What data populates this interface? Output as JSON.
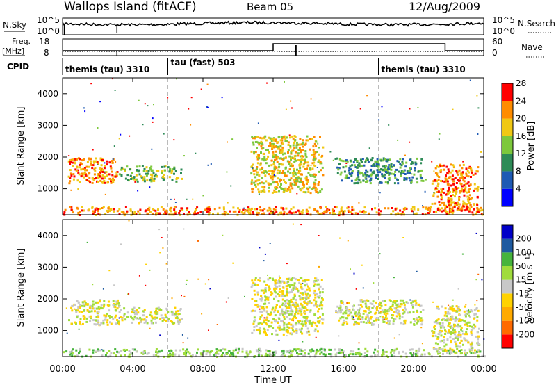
{
  "header": {
    "site": "Wallops Island (fitACF)",
    "beam": "Beam 05",
    "date": "12/Aug/2009"
  },
  "panels": {
    "nsky": {
      "left_label": "N.Sky",
      "left_ticks": [
        "10^5",
        "10^0"
      ],
      "right_ticks": [
        "10^5",
        "10^0"
      ],
      "right_label": "N.Search"
    },
    "freq": {
      "left_label_1": "Freq.",
      "left_label_2": "[MHz]",
      "left_ticks": [
        "18",
        "8"
      ],
      "right_ticks": [
        "60",
        "0"
      ],
      "right_label": "Nave"
    },
    "cpid": {
      "label": "CPID",
      "segments": [
        {
          "text": "themis (tau) 3310",
          "start_h": 0
        },
        {
          "text": "tau (fast) 503",
          "start_h": 6
        },
        {
          "text": "themis (tau) 3310",
          "start_h": 18
        }
      ]
    }
  },
  "chart_data": [
    {
      "type": "heatmap",
      "name": "power",
      "ylabel": "Slant Range [km]",
      "ytick_labels": [
        "1000",
        "2000",
        "3000",
        "4000"
      ],
      "ylim": [
        180,
        4500
      ],
      "xlim_hours": [
        0,
        24
      ],
      "colorbar": {
        "label": "Power [dB]",
        "tick_labels": [
          "4",
          "8",
          "12",
          "16",
          "20",
          "24",
          "28"
        ],
        "colors": [
          "#0000ff",
          "#1e5ab4",
          "#2e8b57",
          "#7dc83c",
          "#f0c814",
          "#ff8c00",
          "#ff0000"
        ]
      },
      "echo_regions": [
        {
          "t0": 0.3,
          "t1": 3.2,
          "r0": 1200,
          "r1": 2000,
          "level": 5
        },
        {
          "t0": 3.2,
          "t1": 6.8,
          "r0": 1250,
          "r1": 1750,
          "level": 3
        },
        {
          "t0": 10.7,
          "t1": 14.8,
          "r0": 900,
          "r1": 2700,
          "level": 4
        },
        {
          "t0": 15.5,
          "t1": 20.5,
          "r0": 1200,
          "r1": 2000,
          "level": 2
        },
        {
          "t0": 21.0,
          "t1": 23.7,
          "r0": 300,
          "r1": 1800,
          "level": 5
        },
        {
          "t0": 0.0,
          "t1": 24.0,
          "r0": 200,
          "r1": 450,
          "level": 5
        }
      ]
    },
    {
      "type": "heatmap",
      "name": "velocity",
      "ylabel": "Slant Range [km]",
      "ytick_labels": [
        "1000",
        "2000",
        "3000",
        "4000"
      ],
      "ylim": [
        180,
        4500
      ],
      "xlim_hours": [
        0,
        24
      ],
      "colorbar": {
        "label": "Velocity [m s⁻¹]",
        "tick_labels": [
          "-200",
          "-100",
          "-50",
          "-15",
          "15",
          "50",
          "100",
          "200"
        ],
        "colors": [
          "#ff0000",
          "#ff6a00",
          "#ffaa00",
          "#ffd200",
          "#c8c8c8",
          "#a0dc3c",
          "#46b43c",
          "#1e5aa0",
          "#0000c8"
        ]
      },
      "echo_regions": [
        {
          "t0": 0.3,
          "t1": 3.2,
          "r0": 1200,
          "r1": 2000,
          "level": 4
        },
        {
          "t0": 3.2,
          "t1": 6.8,
          "r0": 1250,
          "r1": 1750,
          "level": 4
        },
        {
          "t0": 10.7,
          "t1": 14.8,
          "r0": 900,
          "r1": 2700,
          "level": 4
        },
        {
          "t0": 15.5,
          "t1": 20.5,
          "r0": 1200,
          "r1": 2000,
          "level": 4
        },
        {
          "t0": 21.0,
          "t1": 23.7,
          "r0": 300,
          "r1": 1800,
          "level": 4
        },
        {
          "t0": 0.0,
          "t1": 24.0,
          "r0": 200,
          "r1": 450,
          "level": 5
        }
      ]
    }
  ],
  "xaxis": {
    "tick_labels": [
      "00:00",
      "04:00",
      "08:00",
      "12:00",
      "16:00",
      "20:00",
      "00:00"
    ],
    "tick_hours": [
      0,
      4,
      8,
      12,
      16,
      20,
      24
    ],
    "label": "Time UT"
  }
}
